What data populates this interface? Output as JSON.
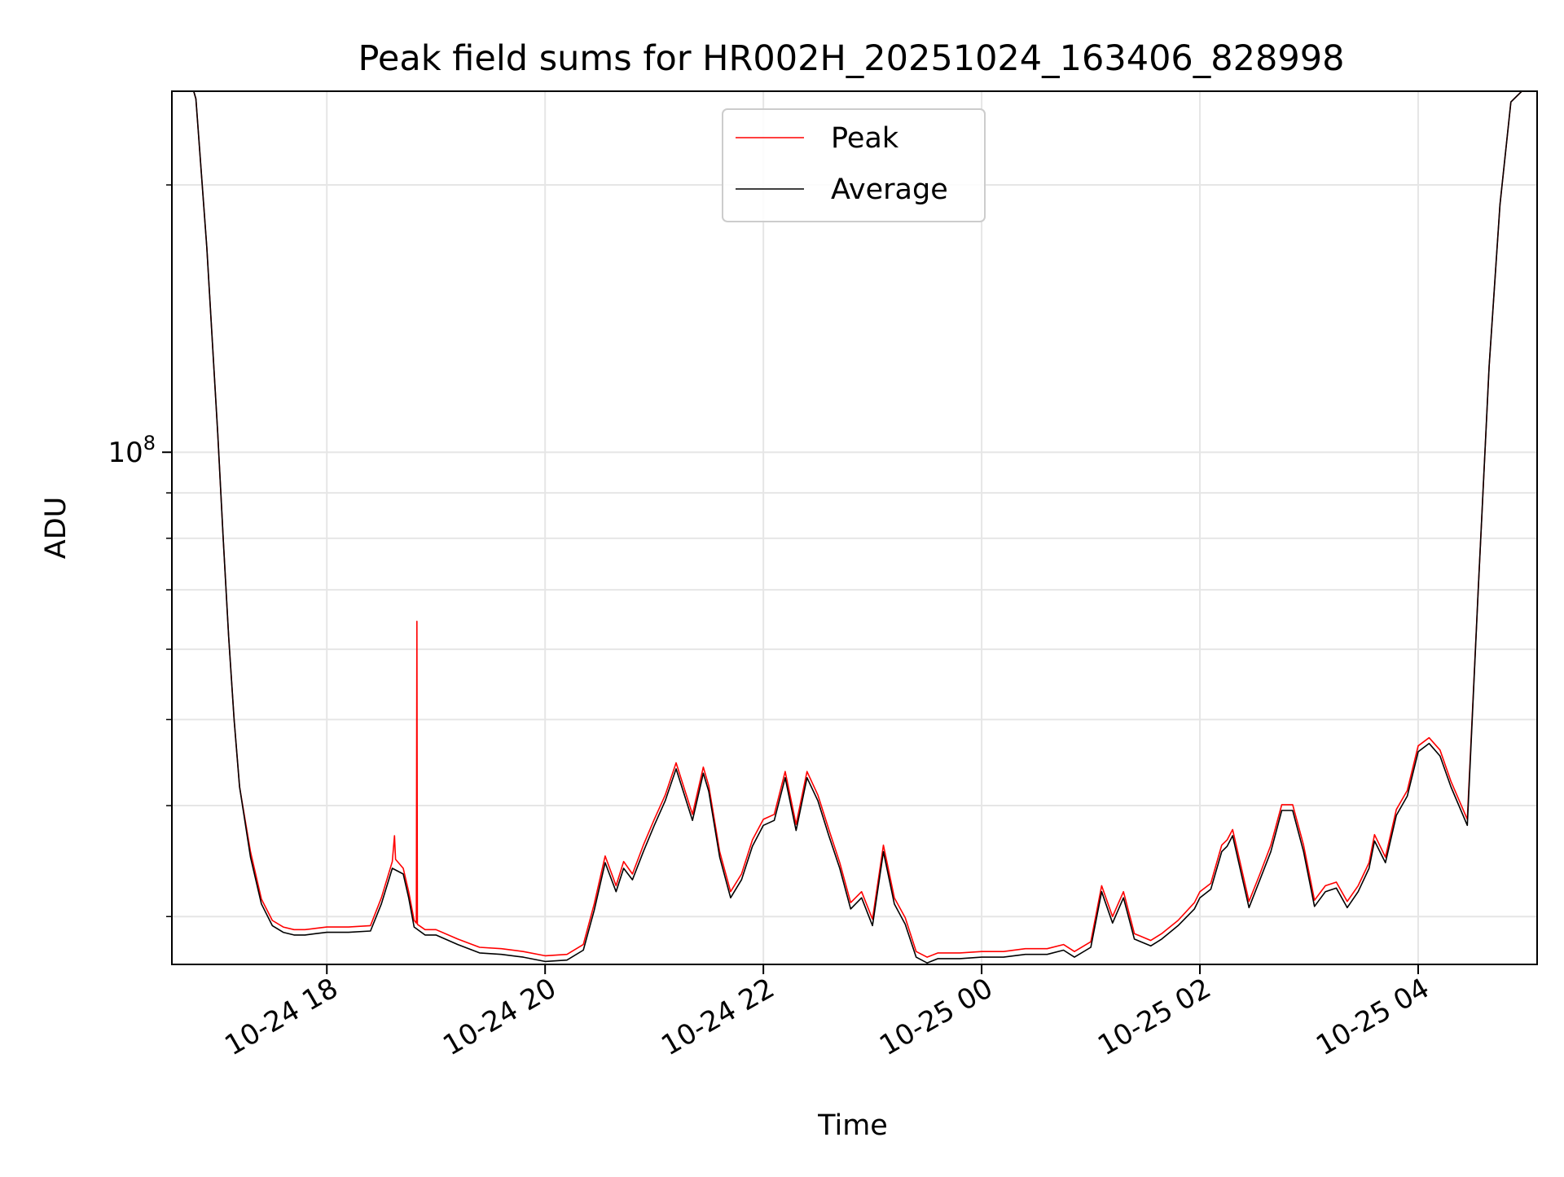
{
  "chart_data": {
    "type": "line",
    "title": "Peak field sums for HR002H_20251024_163406_828998",
    "xlabel": "Time",
    "ylabel": "ADU",
    "yscale": "log",
    "ylim": [
      26500000,
      255000000
    ],
    "xlim_hours": [
      16.58,
      29.09
    ],
    "x_unit": "hours since 2025-10-24 00:00",
    "grid": true,
    "grid_minor": true,
    "legend_position": "upper center",
    "x_ticks": [
      {
        "value": 18,
        "label": "10-24 18"
      },
      {
        "value": 20,
        "label": "10-24 20"
      },
      {
        "value": 22,
        "label": "10-24 22"
      },
      {
        "value": 24,
        "label": "10-25 00"
      },
      {
        "value": 26,
        "label": "10-25 02"
      },
      {
        "value": 28,
        "label": "10-25 04"
      }
    ],
    "y_major_ticks": [
      {
        "value": 100000000,
        "base": "10",
        "exponent": "8"
      }
    ],
    "y_minor_ticks": [
      30000000,
      40000000,
      50000000,
      60000000,
      70000000,
      80000000,
      90000000,
      200000000
    ],
    "series": [
      {
        "name": "Average",
        "color": "#000000",
        "x": [
          16.78,
          16.8,
          16.9,
          17.0,
          17.05,
          17.1,
          17.15,
          17.2,
          17.3,
          17.4,
          17.5,
          17.6,
          17.7,
          17.8,
          17.9,
          18.0,
          18.2,
          18.4,
          18.5,
          18.6,
          18.7,
          18.75,
          18.8,
          18.9,
          19.0,
          19.2,
          19.4,
          19.6,
          19.8,
          20.0,
          20.2,
          20.35,
          20.45,
          20.55,
          20.65,
          20.72,
          20.8,
          20.9,
          21.0,
          21.1,
          21.2,
          21.35,
          21.45,
          21.5,
          21.6,
          21.7,
          21.8,
          21.9,
          22.0,
          22.1,
          22.2,
          22.3,
          22.4,
          22.5,
          22.6,
          22.7,
          22.8,
          22.9,
          23.0,
          23.1,
          23.2,
          23.3,
          23.4,
          23.5,
          23.6,
          23.8,
          24.0,
          24.2,
          24.4,
          24.6,
          24.75,
          24.85,
          25.0,
          25.1,
          25.2,
          25.3,
          25.4,
          25.55,
          25.65,
          25.8,
          25.95,
          26.0,
          26.1,
          26.2,
          26.25,
          26.3,
          26.45,
          26.55,
          26.65,
          26.75,
          26.85,
          26.95,
          27.05,
          27.15,
          27.25,
          27.35,
          27.45,
          27.55,
          27.6,
          27.7,
          27.8,
          27.9,
          28.0,
          28.1,
          28.2,
          28.3,
          28.45,
          28.55,
          28.65,
          28.75,
          28.85,
          28.95,
          29.0,
          29.09
        ],
        "values": [
          255000000,
          250000000,
          170000000,
          105000000,
          80000000,
          62000000,
          50000000,
          42000000,
          35000000,
          31000000,
          29300000,
          28800000,
          28600000,
          28600000,
          28700000,
          28800000,
          28800000,
          28900000,
          31000000,
          34000000,
          33500000,
          31500000,
          29200000,
          28600000,
          28600000,
          27900000,
          27300000,
          27200000,
          27000000,
          26700000,
          26800000,
          27500000,
          30500000,
          34500000,
          32000000,
          34000000,
          33000000,
          35500000,
          38000000,
          40500000,
          44000000,
          38500000,
          43500000,
          41500000,
          35000000,
          31500000,
          33000000,
          36000000,
          38000000,
          38500000,
          43000000,
          37500000,
          43000000,
          40500000,
          37000000,
          34000000,
          30600000,
          31500000,
          29300000,
          35500000,
          31000000,
          29400000,
          27000000,
          26600000,
          26900000,
          26900000,
          27000000,
          27000000,
          27200000,
          27200000,
          27500000,
          27000000,
          27700000,
          32000000,
          29500000,
          31500000,
          28300000,
          27800000,
          28300000,
          29300000,
          30600000,
          31500000,
          32200000,
          35500000,
          36000000,
          37000000,
          30700000,
          33000000,
          35500000,
          39500000,
          39500000,
          35500000,
          30800000,
          32000000,
          32300000,
          30700000,
          32000000,
          34000000,
          36500000,
          34500000,
          39000000,
          41000000,
          46000000,
          47000000,
          45500000,
          42000000,
          38000000,
          70000000,
          125000000,
          190000000,
          248000000,
          255000000,
          255000000,
          255000000
        ]
      },
      {
        "name": "Peak",
        "color": "#ff0000",
        "x": [
          16.78,
          16.8,
          16.9,
          17.0,
          17.05,
          17.1,
          17.15,
          17.2,
          17.3,
          17.4,
          17.5,
          17.6,
          17.7,
          17.8,
          17.9,
          18.0,
          18.2,
          18.4,
          18.5,
          18.6,
          18.62,
          18.63,
          18.7,
          18.75,
          18.8,
          18.82,
          18.825,
          18.83,
          18.9,
          19.0,
          19.2,
          19.4,
          19.6,
          19.8,
          20.0,
          20.2,
          20.35,
          20.45,
          20.55,
          20.65,
          20.72,
          20.8,
          20.9,
          21.0,
          21.1,
          21.2,
          21.35,
          21.45,
          21.5,
          21.6,
          21.7,
          21.8,
          21.9,
          22.0,
          22.1,
          22.2,
          22.3,
          22.4,
          22.5,
          22.6,
          22.7,
          22.8,
          22.9,
          23.0,
          23.1,
          23.2,
          23.3,
          23.4,
          23.5,
          23.6,
          23.8,
          24.0,
          24.2,
          24.4,
          24.6,
          24.75,
          24.85,
          25.0,
          25.1,
          25.2,
          25.3,
          25.4,
          25.55,
          25.65,
          25.8,
          25.95,
          26.0,
          26.1,
          26.2,
          26.25,
          26.3,
          26.45,
          26.55,
          26.65,
          26.75,
          26.85,
          26.95,
          27.05,
          27.15,
          27.25,
          27.35,
          27.45,
          27.55,
          27.6,
          27.7,
          27.8,
          27.9,
          28.0,
          28.1,
          28.2,
          28.3,
          28.45,
          28.55,
          28.65,
          28.75,
          28.85,
          28.95,
          29.0,
          29.09
        ],
        "values": [
          255000000,
          250000000,
          170000000,
          105000000,
          80000000,
          62000000,
          50000000,
          42000000,
          35500000,
          31400000,
          29700000,
          29200000,
          29000000,
          29000000,
          29100000,
          29200000,
          29200000,
          29300000,
          31500000,
          34600000,
          37000000,
          34800000,
          34000000,
          32000000,
          29700000,
          29500000,
          64500000,
          29400000,
          29000000,
          29000000,
          28300000,
          27700000,
          27600000,
          27400000,
          27100000,
          27200000,
          27900000,
          31000000,
          35100000,
          32500000,
          34600000,
          33500000,
          36100000,
          38600000,
          41100000,
          44700000,
          39100000,
          44200000,
          42100000,
          35500000,
          32000000,
          33500000,
          36600000,
          38600000,
          39100000,
          43700000,
          38100000,
          43700000,
          41100000,
          37600000,
          34500000,
          31100000,
          32000000,
          29800000,
          36100000,
          31500000,
          29900000,
          27400000,
          27000000,
          27300000,
          27300000,
          27400000,
          27400000,
          27600000,
          27600000,
          27900000,
          27400000,
          28100000,
          32500000,
          30000000,
          32000000,
          28700000,
          28200000,
          28700000,
          29700000,
          31100000,
          32000000,
          32700000,
          36100000,
          36600000,
          37600000,
          31200000,
          33500000,
          36100000,
          40100000,
          40100000,
          36100000,
          31300000,
          32500000,
          32800000,
          31200000,
          32500000,
          34500000,
          37100000,
          35000000,
          39600000,
          41600000,
          46700000,
          47700000,
          46200000,
          42600000,
          38600000,
          70000000,
          125000000,
          190000000,
          248000000,
          255000000,
          255000000,
          255000000
        ]
      }
    ]
  }
}
